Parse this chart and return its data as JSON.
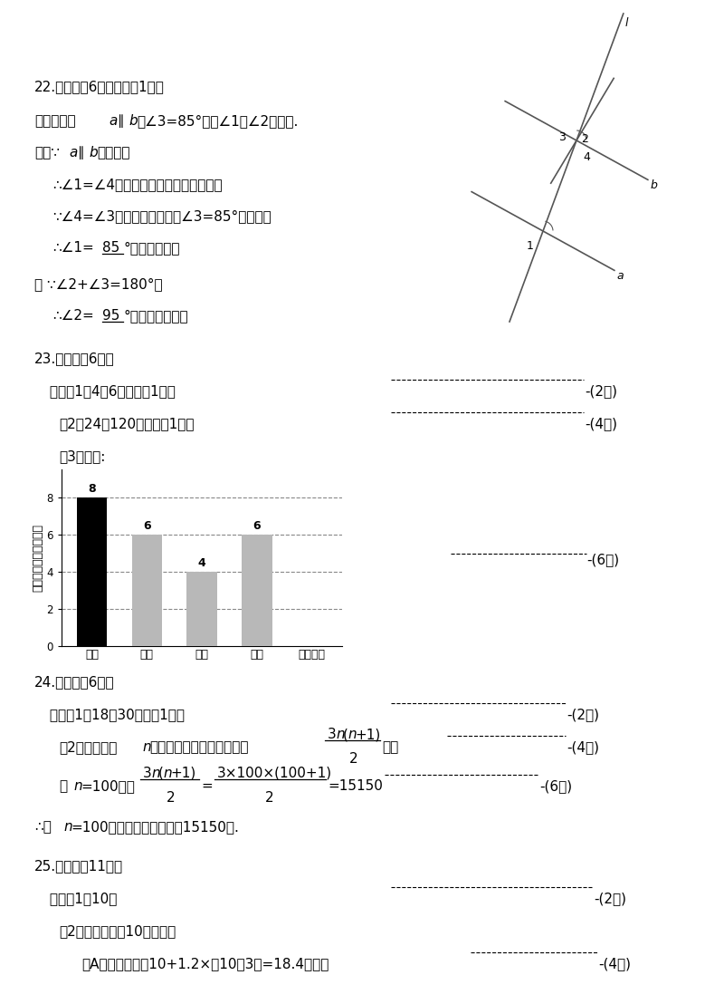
{
  "bg_color": "#ffffff",
  "bar_values": [
    8,
    6,
    4,
    6
  ],
  "bar_colors": [
    "#000000",
    "#b8b8b8",
    "#b8b8b8",
    "#b8b8b8"
  ],
  "bar_categories": [
    "空棋",
    "海棋",
    "车棋",
    "建棋",
    "参赛类别"
  ],
  "bar_ylabel": "参赛人数（单位：人）",
  "bar_yticks": [
    0,
    2,
    4,
    6,
    8
  ],
  "bar_value_labels": [
    "8",
    "6",
    "4",
    "6"
  ],
  "fs": 11,
  "fs_small": 9
}
